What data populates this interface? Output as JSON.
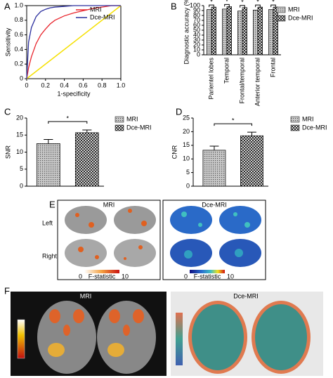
{
  "chart_data": [
    {
      "type": "line",
      "panel_label": "A",
      "x_label": "1-specificity",
      "y_label": "Sensitivity",
      "x": [
        0,
        0.02,
        0.05,
        0.1,
        0.15,
        0.2,
        0.25,
        0.3,
        0.4,
        0.5,
        0.6,
        0.7,
        0.8,
        0.9,
        1
      ],
      "series": [
        {
          "name": "MRI",
          "color": "#e8242c",
          "values": [
            0,
            0.15,
            0.3,
            0.48,
            0.6,
            0.68,
            0.75,
            0.8,
            0.86,
            0.9,
            0.93,
            0.96,
            0.98,
            1,
            1
          ]
        },
        {
          "name": "Dce-MRI",
          "color": "#2b2f9e",
          "values": [
            0,
            0.5,
            0.7,
            0.85,
            0.92,
            0.95,
            0.97,
            0.98,
            0.99,
            1,
            1,
            1,
            1,
            1,
            1
          ]
        }
      ],
      "xlim": [
        0,
        1
      ],
      "ylim": [
        0,
        1
      ],
      "xticks": [
        0,
        0.2,
        0.4,
        0.6,
        0.8,
        {
          "value": 1,
          "label": "1.0"
        }
      ],
      "yticks": [
        0,
        0.2,
        0.4,
        0.6,
        0.8,
        {
          "value": 1,
          "label": "1.0"
        }
      ]
    },
    {
      "type": "bar",
      "panel_label": "B",
      "y_label": "Diagnostic accuracy (%)",
      "categories": [
        "Parientel lobes",
        "Temporal",
        "Frontal/temporal",
        "Anterior temporal",
        "Frontal"
      ],
      "series": [
        {
          "name": "MRI",
          "pattern": "dots",
          "values": [
            92,
            93,
            89,
            91,
            92
          ]
        },
        {
          "name": "Dce-MRI",
          "pattern": "crosshatch",
          "values": [
            97,
            98,
            96,
            97,
            97
          ]
        }
      ],
      "annotations": [
        "*",
        "*",
        "*",
        "*",
        "*"
      ],
      "ylim": [
        0,
        100
      ],
      "yticks": [
        0,
        10,
        20,
        30,
        40,
        50,
        60,
        70,
        80,
        90,
        100
      ]
    },
    {
      "type": "bar",
      "panel_label": "C",
      "y_label": "SNR",
      "series": [
        {
          "name": "MRI",
          "pattern": "dots",
          "values": [
            12.5
          ],
          "errors": [
            1.2
          ]
        },
        {
          "name": "Dce-MRI",
          "pattern": "crosshatch",
          "values": [
            15.7
          ],
          "errors": [
            0.8
          ]
        }
      ],
      "annotations": [
        "*"
      ],
      "ylim": [
        0,
        20
      ],
      "yticks": [
        0,
        5,
        10,
        15,
        20
      ]
    },
    {
      "type": "bar",
      "panel_label": "D",
      "y_label": "CNR",
      "series": [
        {
          "name": "MRI",
          "pattern": "dots",
          "values": [
            13.2
          ],
          "errors": [
            1.5
          ]
        },
        {
          "name": "Dce-MRI",
          "pattern": "crosshatch",
          "values": [
            18.5
          ],
          "errors": [
            1.3
          ]
        }
      ],
      "annotations": [
        "*"
      ],
      "ylim": [
        0,
        25
      ],
      "yticks": [
        0,
        5,
        10,
        15,
        20,
        25
      ]
    }
  ],
  "figure_panels": [
    {
      "panel_label": "E",
      "left_title": "MRI",
      "right_title": "Dce-MRI",
      "rows": [
        "Left",
        "Right"
      ],
      "colorbar": [
        "0",
        "F-statistic",
        "10"
      ]
    },
    {
      "panel_label": "F",
      "left_title": "MRI",
      "right_title": "Dce-MRI"
    }
  ]
}
